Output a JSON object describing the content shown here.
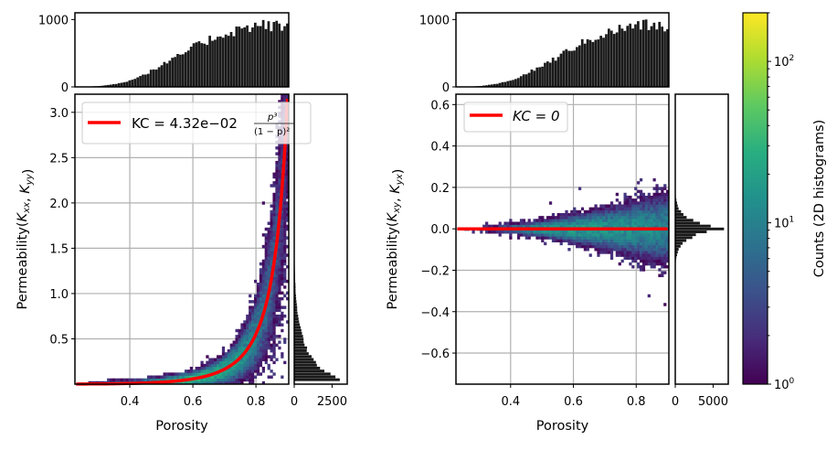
{
  "chart_data": [
    {
      "type": "heatmap",
      "panel": "left",
      "xlabel": "Porosity",
      "ylabel": "Permeability(K_xx, K_yy)",
      "xlim": [
        0.226,
        0.904
      ],
      "ylim": [
        0.0,
        3.2
      ],
      "xticks": [
        "0.4",
        "0.6",
        "0.8"
      ],
      "xtick_values": [
        0.4,
        0.6,
        0.8
      ],
      "yticks": [
        "0.5",
        "1.0",
        "1.5",
        "2.0",
        "2.5",
        "3.0"
      ],
      "ytick_values": [
        0.5,
        1.0,
        1.5,
        2.0,
        2.5,
        3.0
      ],
      "grid": true,
      "fit_line": {
        "legend": "KC = 4.32e−02",
        "legend_numerator": "p³",
        "legend_denominator": "(1 − p)²",
        "coefficient": 0.0432,
        "color": "#ff0000"
      },
      "legend_placement": "top-left",
      "top_histogram": {
        "yticks": [
          "0",
          "1000"
        ],
        "ytick_values": [
          0,
          1000
        ],
        "ylim": [
          0,
          1100
        ],
        "x": [
          0.23,
          0.27,
          0.31,
          0.35,
          0.39,
          0.43,
          0.47,
          0.51,
          0.55,
          0.59,
          0.63,
          0.67,
          0.71,
          0.75,
          0.79,
          0.83,
          0.87,
          0.9
        ],
        "counts": [
          0,
          5,
          15,
          40,
          80,
          150,
          240,
          340,
          440,
          560,
          650,
          740,
          800,
          860,
          900,
          920,
          900,
          880
        ]
      },
      "side_histogram": {
        "xticks": [
          "0",
          "2500"
        ],
        "xtick_values": [
          0,
          2500
        ],
        "xlim": [
          0,
          3500
        ],
        "y": [
          0.02,
          0.06,
          0.1,
          0.15,
          0.2,
          0.3,
          0.4,
          0.5,
          0.6,
          0.7,
          0.8,
          0.9,
          1.0,
          1.2,
          1.4,
          1.6
        ],
        "counts": [
          3300,
          3000,
          2500,
          2000,
          1600,
          1100,
          800,
          600,
          430,
          300,
          210,
          150,
          100,
          50,
          20,
          5
        ]
      }
    },
    {
      "type": "heatmap",
      "panel": "right",
      "xlabel": "Porosity",
      "ylabel": "Permeability(K_xy, K_yx)",
      "xlim": [
        0.226,
        0.904
      ],
      "ylim": [
        -0.75,
        0.65
      ],
      "xticks": [
        "0.4",
        "0.6",
        "0.8"
      ],
      "xtick_values": [
        0.4,
        0.6,
        0.8
      ],
      "yticks": [
        "−0.6",
        "−0.4",
        "−0.2",
        "0.0",
        "0.2",
        "0.4",
        "0.6"
      ],
      "ytick_values": [
        -0.6,
        -0.4,
        -0.2,
        0.0,
        0.2,
        0.4,
        0.6
      ],
      "grid": true,
      "fit_line": {
        "legend": "KC = 0",
        "coefficient": 0,
        "color": "#ff0000"
      },
      "legend_placement": "top-left",
      "top_histogram": {
        "yticks": [
          "0",
          "1000"
        ],
        "ytick_values": [
          0,
          1000
        ],
        "ylim": [
          0,
          1100
        ],
        "x": [
          0.23,
          0.27,
          0.31,
          0.35,
          0.39,
          0.43,
          0.47,
          0.51,
          0.55,
          0.59,
          0.63,
          0.67,
          0.71,
          0.75,
          0.79,
          0.83,
          0.87,
          0.9
        ],
        "counts": [
          0,
          5,
          15,
          40,
          80,
          150,
          240,
          340,
          440,
          560,
          650,
          740,
          800,
          860,
          900,
          920,
          900,
          880
        ]
      },
      "side_histogram": {
        "xticks": [
          "0",
          "5000"
        ],
        "xtick_values": [
          0,
          5000
        ],
        "xlim": [
          0,
          7000
        ],
        "y": [
          -0.2,
          -0.15,
          -0.1,
          -0.06,
          -0.03,
          -0.01,
          0.0,
          0.01,
          0.03,
          0.06,
          0.1,
          0.15,
          0.2
        ],
        "counts": [
          0,
          80,
          400,
          1300,
          2800,
          4800,
          6800,
          4800,
          2800,
          1300,
          400,
          80,
          0
        ]
      }
    }
  ],
  "colorbar": {
    "label": "Counts (2D histograms)",
    "scale": "log",
    "colormap": "viridis",
    "range": [
      1,
      200
    ],
    "ticks": [
      {
        "base": "10",
        "exp": "0",
        "value": 1
      },
      {
        "base": "10",
        "exp": "1",
        "value": 10
      },
      {
        "base": "10",
        "exp": "2",
        "value": 100
      }
    ]
  }
}
